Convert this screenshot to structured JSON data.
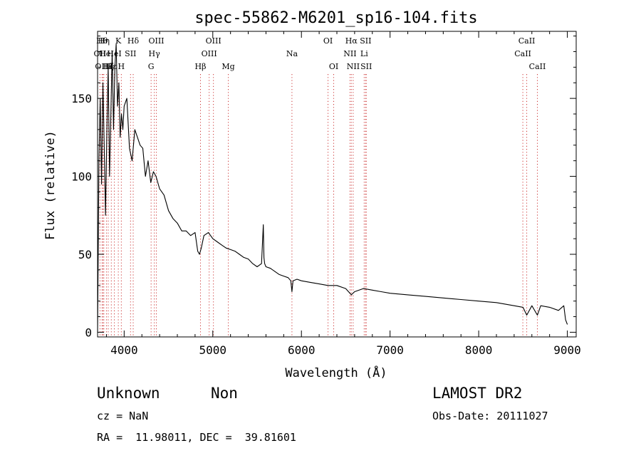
{
  "chart_data": {
    "type": "line",
    "title": "spec-55862-M6201_sp16-104.fits",
    "xlabel": "Wavelength (Å)",
    "ylabel": "Flux (relative)",
    "xlim": [
      3700,
      9100
    ],
    "ylim": [
      -3,
      193
    ],
    "xticks": [
      4000,
      5000,
      6000,
      7000,
      8000,
      9000
    ],
    "yticks": [
      0,
      50,
      100,
      150
    ],
    "grid": false,
    "line_color": "#000000",
    "marker_color": "#cc3333",
    "series": [
      {
        "x": [
          3700,
          3715,
          3730,
          3745,
          3760,
          3775,
          3790,
          3805,
          3820,
          3835,
          3850,
          3865,
          3880,
          3895,
          3910,
          3925,
          3940,
          3955,
          3970,
          3985,
          4000,
          4030,
          4060,
          4090,
          4120,
          4150,
          4180,
          4210,
          4240,
          4270,
          4300,
          4330,
          4360,
          4400,
          4450,
          4500,
          4550,
          4600,
          4650,
          4700,
          4750,
          4800,
          4830,
          4850,
          4870,
          4900,
          4950,
          5000,
          5050,
          5100,
          5150,
          5200,
          5250,
          5300,
          5350,
          5400,
          5450,
          5500,
          5550,
          5570,
          5577,
          5585,
          5600,
          5650,
          5700,
          5750,
          5800,
          5850,
          5880,
          5893,
          5905,
          5950,
          6000,
          6100,
          6200,
          6300,
          6400,
          6500,
          6563,
          6600,
          6700,
          6800,
          6900,
          7000,
          7200,
          7400,
          7600,
          7800,
          8000,
          8200,
          8400,
          8500,
          8542,
          8600,
          8662,
          8700,
          8800,
          8900,
          8960,
          8980,
          9000
        ],
        "y": [
          0,
          110,
          150,
          95,
          160,
          120,
          75,
          130,
          170,
          100,
          140,
          180,
          130,
          170,
          185,
          145,
          160,
          125,
          140,
          130,
          145,
          150,
          118,
          110,
          130,
          125,
          120,
          118,
          100,
          110,
          96,
          103,
          100,
          92,
          88,
          78,
          73,
          70,
          65,
          65,
          62,
          64,
          52,
          50,
          54,
          62,
          64,
          60,
          58,
          56,
          54,
          53,
          52,
          50,
          48,
          47,
          44,
          42,
          44,
          69,
          48,
          44,
          42,
          41,
          39,
          37,
          36,
          35,
          33,
          26,
          33,
          34,
          33,
          32,
          31,
          30,
          30,
          28,
          24,
          26,
          28,
          27,
          26,
          25,
          24,
          23,
          22,
          21,
          20,
          19,
          17,
          16,
          11,
          17,
          11,
          17,
          16,
          14,
          17,
          8,
          5
        ]
      }
    ],
    "lines": [
      {
        "name": "OII",
        "x": 3727,
        "row": 1,
        "pos": "top"
      },
      {
        "name": "Hθ",
        "x": 3750,
        "row": 0,
        "pos": "top"
      },
      {
        "name": "OIII",
        "x": 3760,
        "row": 2,
        "pos": "top"
      },
      {
        "name": "Hη",
        "x": 3771,
        "row": 0,
        "pos": "top"
      },
      {
        "name": "HeI",
        "x": 3800,
        "row": 1,
        "pos": "top"
      },
      {
        "name": "Hζ",
        "x": 3820,
        "row": 2,
        "pos": "top"
      },
      {
        "name": "K",
        "x": 3934,
        "row": 0,
        "pos": "top"
      },
      {
        "name": "HeI",
        "x": 3889,
        "row": 1,
        "pos": "top"
      },
      {
        "name": "Hε",
        "x": 3855,
        "row": 2,
        "pos": "top"
      },
      {
        "name": "H",
        "x": 3968,
        "row": 2,
        "pos": "top"
      },
      {
        "name": "SII",
        "x": 4072,
        "row": 1,
        "pos": "top"
      },
      {
        "name": "Hδ",
        "x": 4102,
        "row": 0,
        "pos": "top"
      },
      {
        "name": "OIII",
        "x": 4363,
        "row": 0,
        "pos": "top"
      },
      {
        "name": "Hγ",
        "x": 4340,
        "row": 1,
        "pos": "top"
      },
      {
        "name": "G",
        "x": 4304,
        "row": 2,
        "pos": "top"
      },
      {
        "name": "Hβ",
        "x": 4861,
        "row": 2,
        "pos": "top"
      },
      {
        "name": "OIII",
        "x": 5007,
        "row": 0,
        "pos": "top"
      },
      {
        "name": "OIII",
        "x": 4959,
        "row": 1,
        "pos": "top"
      },
      {
        "name": "Mg",
        "x": 5175,
        "row": 2,
        "pos": "top"
      },
      {
        "name": "Na",
        "x": 5893,
        "row": 1,
        "pos": "top"
      },
      {
        "name": "OI",
        "x": 6300,
        "row": 0,
        "pos": "top"
      },
      {
        "name": "OI",
        "x": 6364,
        "row": 2,
        "pos": "top"
      },
      {
        "name": "Hα",
        "x": 6563,
        "row": 0,
        "pos": "top"
      },
      {
        "name": "NII",
        "x": 6548,
        "row": 1,
        "pos": "top"
      },
      {
        "name": "NII",
        "x": 6584,
        "row": 2,
        "pos": "top"
      },
      {
        "name": "SII",
        "x": 6724,
        "row": 0,
        "pos": "top"
      },
      {
        "name": "Li",
        "x": 6708,
        "row": 1,
        "pos": "top"
      },
      {
        "name": "SII",
        "x": 6731,
        "row": 2,
        "pos": "top"
      },
      {
        "name": "CaII",
        "x": 8542,
        "row": 0,
        "pos": "top"
      },
      {
        "name": "CaII",
        "x": 8498,
        "row": 1,
        "pos": "top"
      },
      {
        "name": "CaII",
        "x": 8662,
        "row": 2,
        "pos": "top"
      }
    ]
  },
  "info": {
    "class": "Unknown",
    "subclass": "Non",
    "survey": "LAMOST DR2",
    "cz": "cz = NaN",
    "obs_date": "Obs-Date: 20111027",
    "coords": "RA =  11.98011, DEC =  39.81601"
  }
}
